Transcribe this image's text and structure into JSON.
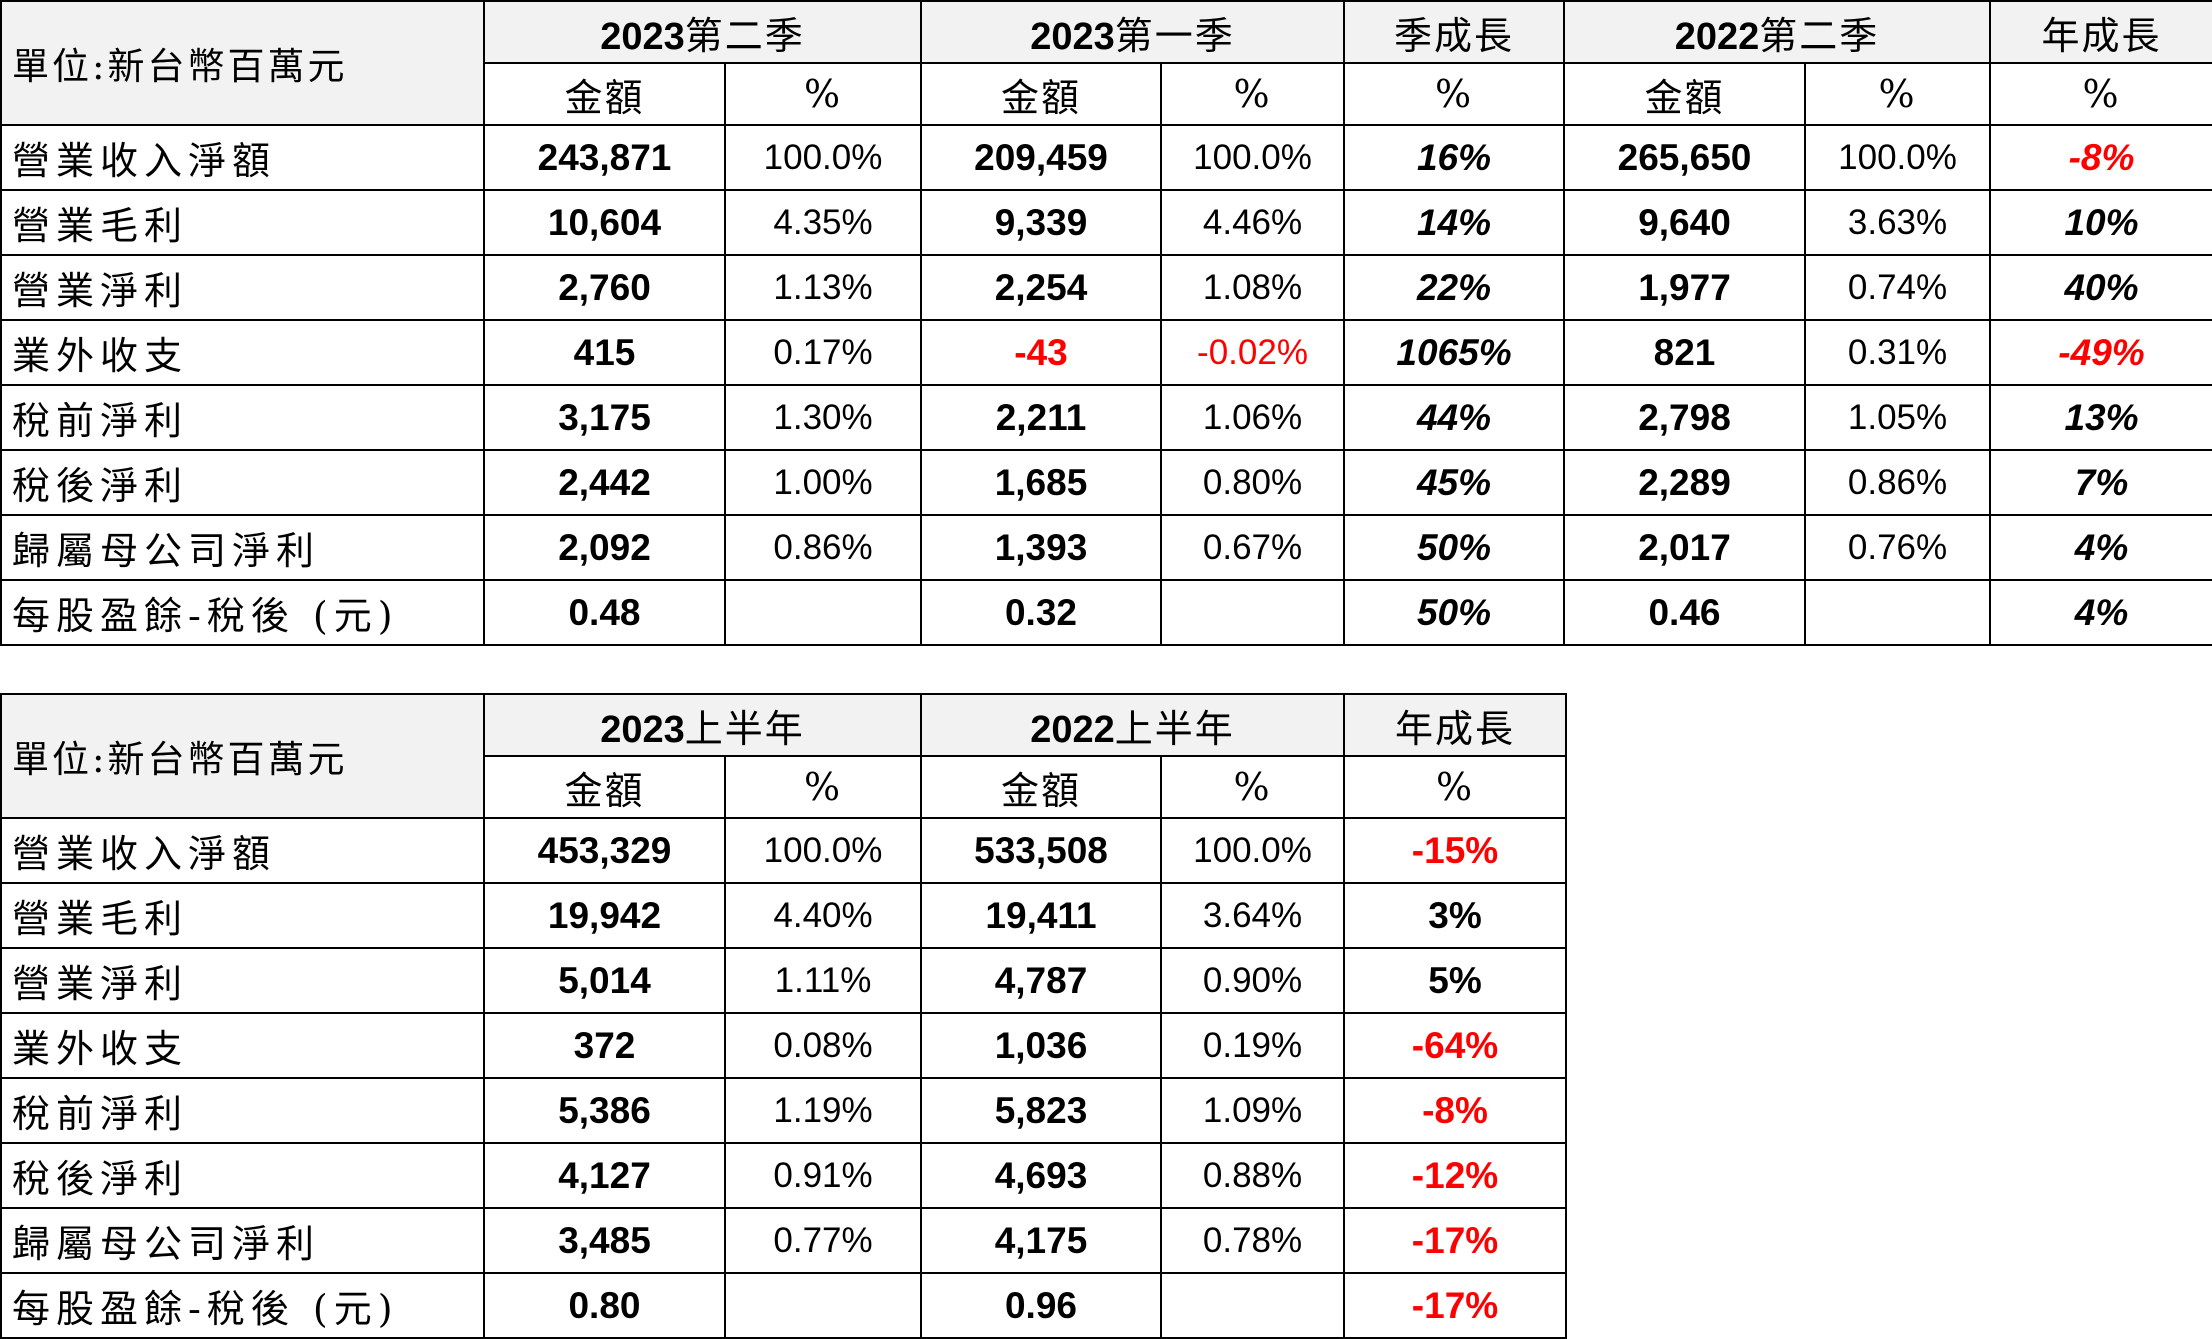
{
  "quarterly": {
    "unit": "單位:新台幣百萬元",
    "groups": [
      {
        "year": "2023",
        "label": "第二季"
      },
      {
        "year": "2023",
        "label": "第一季"
      },
      {
        "label": "季成長"
      },
      {
        "year": "2022",
        "label": "第二季"
      },
      {
        "label": "年成長"
      }
    ],
    "subheaders": {
      "amount": "金額",
      "percent": "%"
    },
    "rows": [
      {
        "label": "營業收入淨額",
        "a1": "243,871",
        "p1": "100.0%",
        "a2": "209,459",
        "p2": "100.0%",
        "qoq": "16%",
        "a3": "265,650",
        "p3": "100.0%",
        "yoy": "-8%"
      },
      {
        "label": "營業毛利",
        "a1": "10,604",
        "p1": "4.35%",
        "a2": "9,339",
        "p2": "4.46%",
        "qoq": "14%",
        "a3": "9,640",
        "p3": "3.63%",
        "yoy": "10%"
      },
      {
        "label": "營業淨利",
        "a1": "2,760",
        "p1": "1.13%",
        "a2": "2,254",
        "p2": "1.08%",
        "qoq": "22%",
        "a3": "1,977",
        "p3": "0.74%",
        "yoy": "40%"
      },
      {
        "label": "業外收支",
        "a1": "415",
        "p1": "0.17%",
        "a2": "-43",
        "p2": "-0.02%",
        "qoq": "1065%",
        "a3": "821",
        "p3": "0.31%",
        "yoy": "-49%"
      },
      {
        "label": "稅前淨利",
        "a1": "3,175",
        "p1": "1.30%",
        "a2": "2,211",
        "p2": "1.06%",
        "qoq": "44%",
        "a3": "2,798",
        "p3": "1.05%",
        "yoy": "13%"
      },
      {
        "label": "稅後淨利",
        "a1": "2,442",
        "p1": "1.00%",
        "a2": "1,685",
        "p2": "0.80%",
        "qoq": "45%",
        "a3": "2,289",
        "p3": "0.86%",
        "yoy": "7%"
      },
      {
        "label": "歸屬母公司淨利",
        "a1": "2,092",
        "p1": "0.86%",
        "a2": "1,393",
        "p2": "0.67%",
        "qoq": "50%",
        "a3": "2,017",
        "p3": "0.76%",
        "yoy": "4%"
      },
      {
        "label": "每股盈餘-稅後 (元)",
        "a1": "0.48",
        "p1": "",
        "a2": "0.32",
        "p2": "",
        "qoq": "50%",
        "a3": "0.46",
        "p3": "",
        "yoy": "4%"
      }
    ]
  },
  "halfyear": {
    "unit": "單位:新台幣百萬元",
    "groups": [
      {
        "year": "2023",
        "label": "上半年"
      },
      {
        "year": "2022",
        "label": "上半年"
      },
      {
        "label": "年成長"
      }
    ],
    "subheaders": {
      "amount": "金額",
      "percent": "%"
    },
    "rows": [
      {
        "label": "營業收入淨額",
        "a1": "453,329",
        "p1": "100.0%",
        "a2": "533,508",
        "p2": "100.0%",
        "yoy": "-15%"
      },
      {
        "label": "營業毛利",
        "a1": "19,942",
        "p1": "4.40%",
        "a2": "19,411",
        "p2": "3.64%",
        "yoy": "3%"
      },
      {
        "label": "營業淨利",
        "a1": "5,014",
        "p1": "1.11%",
        "a2": "4,787",
        "p2": "0.90%",
        "yoy": "5%"
      },
      {
        "label": "業外收支",
        "a1": "372",
        "p1": "0.08%",
        "a2": "1,036",
        "p2": "0.19%",
        "yoy": "-64%"
      },
      {
        "label": "稅前淨利",
        "a1": "5,386",
        "p1": "1.19%",
        "a2": "5,823",
        "p2": "1.09%",
        "yoy": "-8%"
      },
      {
        "label": "稅後淨利",
        "a1": "4,127",
        "p1": "0.91%",
        "a2": "4,693",
        "p2": "0.88%",
        "yoy": "-12%"
      },
      {
        "label": "歸屬母公司淨利",
        "a1": "3,485",
        "p1": "0.77%",
        "a2": "4,175",
        "p2": "0.78%",
        "yoy": "-17%"
      },
      {
        "label": "每股盈餘-稅後 (元)",
        "a1": "0.80",
        "p1": "",
        "a2": "0.96",
        "p2": "",
        "yoy": "-17%"
      }
    ]
  },
  "colors": {
    "negative": "#ff0000",
    "header_bg": "#f2f2f2",
    "border": "#000000"
  }
}
